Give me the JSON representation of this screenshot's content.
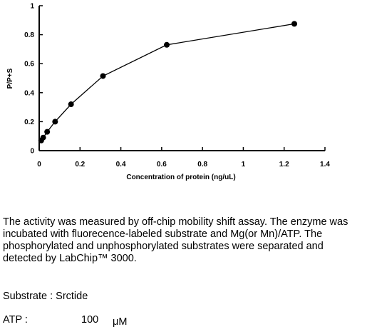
{
  "chart_data": {
    "type": "line",
    "xlabel": "Concentration of protein (ng/uL)",
    "ylabel": "P/P+S",
    "xlim": [
      0,
      1.4
    ],
    "ylim": [
      0,
      1
    ],
    "x_ticks": [
      "0",
      "0.2",
      "0.4",
      "0.6",
      "0.8",
      "1",
      "1.2",
      "1.4"
    ],
    "y_ticks": [
      "0",
      "0.2",
      "0.4",
      "0.6",
      "0.8",
      "1"
    ],
    "series": [
      {
        "x": [
          0.0098,
          0.0195,
          0.039,
          0.078,
          0.156,
          0.3125,
          0.625,
          1.25
        ],
        "y": [
          0.07,
          0.09,
          0.13,
          0.2,
          0.32,
          0.515,
          0.73,
          0.875
        ]
      }
    ]
  },
  "description": "The activity was measured by off-chip mobility shift assay. The enzyme was incubated with fluorecence-labeled  substrate and Mg(or Mn)/ATP. The phosphorylated and unphosphorylated substrates were separated and detected by LabChip™ 3000.",
  "substrate_line": "Substrate : Srctide",
  "atp": {
    "label": "ATP :",
    "value": "100",
    "unit": "μM"
  }
}
